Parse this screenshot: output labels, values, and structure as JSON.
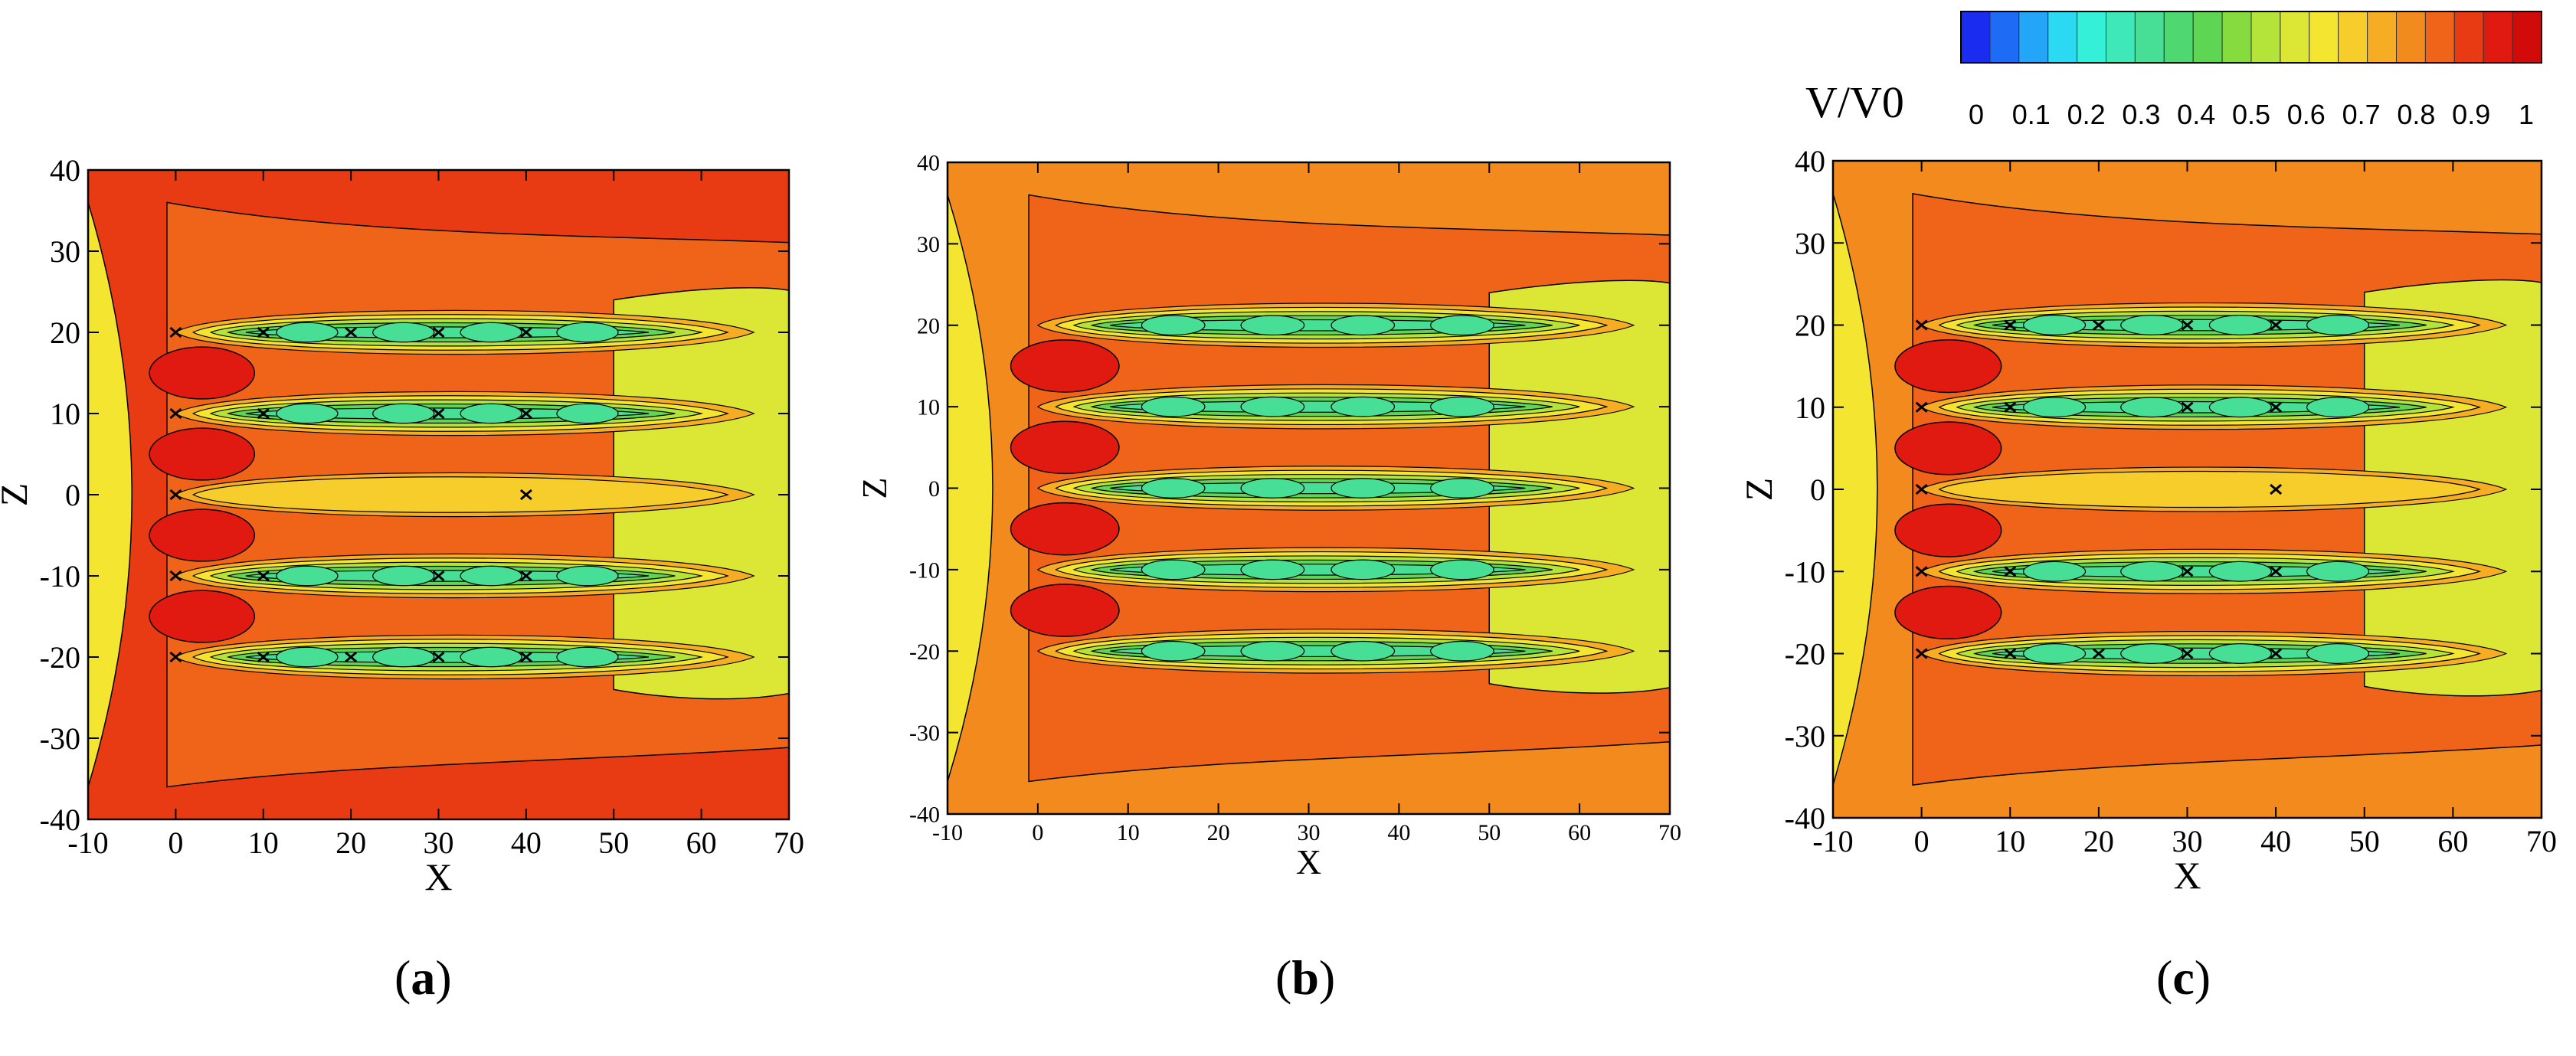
{
  "figure": {
    "colorbar": {
      "title": "V/V0",
      "min": 0,
      "max": 1,
      "levels": 20,
      "tick_labels": [
        "0",
        "0.1",
        "0.2",
        "0.3",
        "0.4",
        "0.5",
        "0.6",
        "0.7",
        "0.8",
        "0.9",
        "1"
      ],
      "colors": [
        "#1a2cf0",
        "#1e6cf5",
        "#23a6f7",
        "#2bd9f2",
        "#35f0d8",
        "#3ee8b8",
        "#46df95",
        "#4fd872",
        "#5fd653",
        "#86dc3f",
        "#b4e33a",
        "#dbe734",
        "#f4e531",
        "#f7cd2c",
        "#f6ad24",
        "#f38a1d",
        "#ef6418",
        "#e83b14",
        "#e01a10",
        "#d10a0a"
      ]
    },
    "captions": [
      "a",
      "b",
      "c"
    ]
  },
  "chart_data": [
    {
      "type": "heatmap",
      "panel": "a",
      "xlabel": "X",
      "ylabel": "Z",
      "xlim": [
        -10,
        70
      ],
      "ylim": [
        -40,
        40
      ],
      "xticks": [
        "-10",
        "0",
        "10",
        "20",
        "30",
        "40",
        "50",
        "60",
        "70"
      ],
      "yticks": [
        "40",
        "30",
        "20",
        "10",
        "0",
        "-10",
        "-20",
        "-30",
        "-40"
      ],
      "colorscale": "V/V0",
      "zrange": [
        0,
        1
      ],
      "turbines": [
        [
          0,
          20
        ],
        [
          10,
          20
        ],
        [
          20,
          20
        ],
        [
          30,
          20
        ],
        [
          40,
          20
        ],
        [
          0,
          10
        ],
        [
          10,
          10
        ],
        [
          30,
          10
        ],
        [
          40,
          10
        ],
        [
          0,
          0
        ],
        [
          40,
          0
        ],
        [
          0,
          -10
        ],
        [
          10,
          -10
        ],
        [
          30,
          -10
        ],
        [
          40,
          -10
        ],
        [
          0,
          -20
        ],
        [
          10,
          -20
        ],
        [
          20,
          -20
        ],
        [
          30,
          -20
        ],
        [
          40,
          -20
        ]
      ],
      "background_level": 0.85
    },
    {
      "type": "heatmap",
      "panel": "b",
      "xlabel": "X",
      "ylabel": "Z",
      "xlim": [
        -10,
        70
      ],
      "ylim": [
        -40,
        40
      ],
      "xticks": [
        "-10",
        "0",
        "10",
        "20",
        "30",
        "40",
        "50",
        "60",
        "70"
      ],
      "yticks": [
        "40",
        "30",
        "20",
        "10",
        "0",
        "-10",
        "-20",
        "-30",
        "-40"
      ],
      "colorscale": "V/V0",
      "zrange": [
        0,
        1
      ],
      "turbines": [],
      "background_level": 0.78
    },
    {
      "type": "heatmap",
      "panel": "c",
      "xlabel": "X",
      "ylabel": "Z",
      "xlim": [
        -10,
        70
      ],
      "ylim": [
        -40,
        40
      ],
      "xticks": [
        "-10",
        "0",
        "10",
        "20",
        "30",
        "40",
        "50",
        "60",
        "70"
      ],
      "yticks": [
        "40",
        "30",
        "20",
        "10",
        "0",
        "-10",
        "-20",
        "-30",
        "-40"
      ],
      "colorscale": "V/V0",
      "zrange": [
        0,
        1
      ],
      "turbines": [
        [
          0,
          20
        ],
        [
          10,
          20
        ],
        [
          20,
          20
        ],
        [
          30,
          20
        ],
        [
          40,
          20
        ],
        [
          0,
          10
        ],
        [
          10,
          10
        ],
        [
          30,
          10
        ],
        [
          40,
          10
        ],
        [
          0,
          0
        ],
        [
          40,
          0
        ],
        [
          0,
          -10
        ],
        [
          10,
          -10
        ],
        [
          30,
          -10
        ],
        [
          40,
          -10
        ],
        [
          0,
          -20
        ],
        [
          10,
          -20
        ],
        [
          20,
          -20
        ],
        [
          30,
          -20
        ],
        [
          40,
          -20
        ]
      ],
      "background_level": 0.78
    }
  ]
}
